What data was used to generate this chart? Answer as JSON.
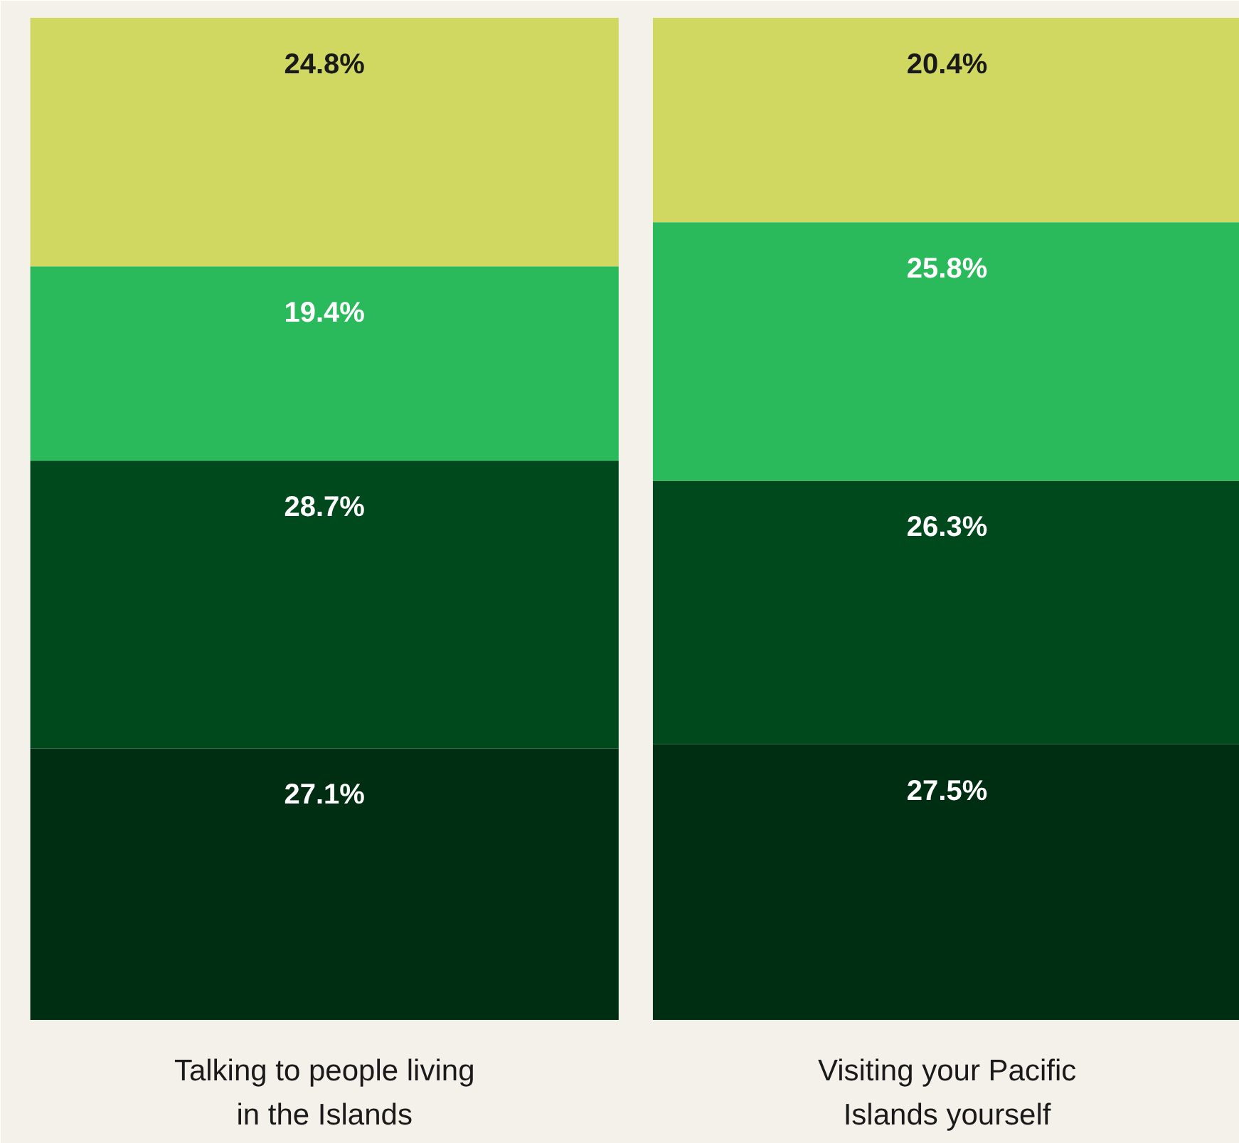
{
  "chart_data": {
    "type": "bar",
    "stacked": true,
    "categories": [
      "Talking to people living\nin the Islands",
      "Visiting your Pacific\nIslands yourself"
    ],
    "series": [
      {
        "color": "#002e12",
        "values": [
          27.1,
          27.5
        ],
        "value_labels": [
          "27.1%",
          "27.5%"
        ]
      },
      {
        "color": "#00491c",
        "values": [
          28.7,
          26.3
        ],
        "value_labels": [
          "28.7%",
          "26.3%"
        ]
      },
      {
        "color": "#2bba5b",
        "values": [
          19.4,
          25.8
        ],
        "value_labels": [
          "19.4%",
          "25.8%"
        ]
      },
      {
        "color": "#d0d862",
        "values": [
          24.8,
          20.4
        ],
        "value_labels": [
          "24.8%",
          "20.4%"
        ]
      }
    ],
    "grid": false
  }
}
